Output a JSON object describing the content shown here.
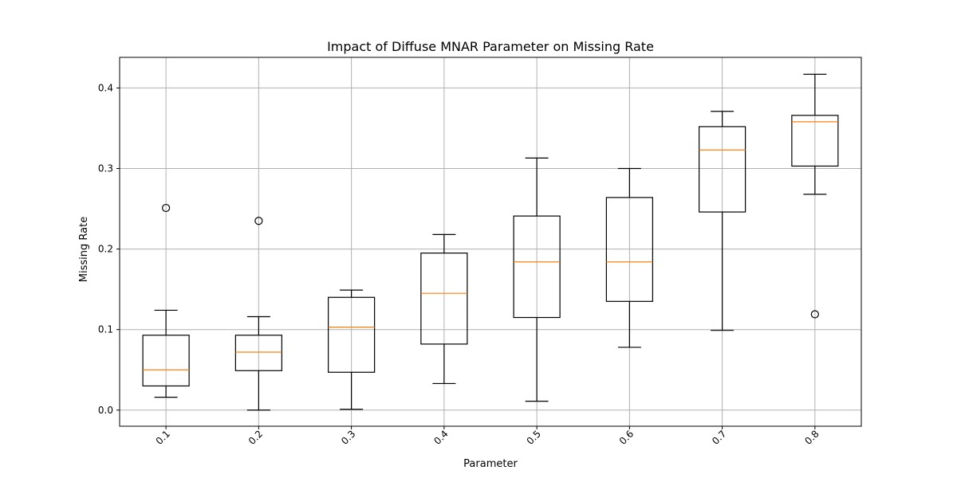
{
  "chart_data": {
    "type": "box",
    "title": "Impact of Diffuse MNAR Parameter on Missing Rate",
    "xlabel": "Parameter",
    "ylabel": "Missing Rate",
    "ylim": [
      -0.02,
      0.438
    ],
    "yticks": [
      0.0,
      0.1,
      0.2,
      0.3,
      0.4
    ],
    "ytick_labels": [
      "0.0",
      "0.1",
      "0.2",
      "0.3",
      "0.4"
    ],
    "grid": true,
    "xtick_rotation": 45,
    "categories": [
      "0.1",
      "0.2",
      "0.3",
      "0.4",
      "0.5",
      "0.6",
      "0.7",
      "0.8"
    ],
    "boxes": [
      {
        "whisker_low": 0.016,
        "q1": 0.03,
        "median": 0.05,
        "q3": 0.093,
        "whisker_high": 0.124,
        "outliers": [
          0.251
        ]
      },
      {
        "whisker_low": 0.0,
        "q1": 0.049,
        "median": 0.072,
        "q3": 0.093,
        "whisker_high": 0.116,
        "outliers": [
          0.235
        ]
      },
      {
        "whisker_low": 0.001,
        "q1": 0.047,
        "median": 0.103,
        "q3": 0.14,
        "whisker_high": 0.149,
        "outliers": []
      },
      {
        "whisker_low": 0.033,
        "q1": 0.082,
        "median": 0.145,
        "q3": 0.195,
        "whisker_high": 0.218,
        "outliers": []
      },
      {
        "whisker_low": 0.011,
        "q1": 0.115,
        "median": 0.184,
        "q3": 0.241,
        "whisker_high": 0.313,
        "outliers": []
      },
      {
        "whisker_low": 0.078,
        "q1": 0.135,
        "median": 0.184,
        "q3": 0.264,
        "whisker_high": 0.3,
        "outliers": []
      },
      {
        "whisker_low": 0.099,
        "q1": 0.246,
        "median": 0.323,
        "q3": 0.352,
        "whisker_high": 0.371,
        "outliers": []
      },
      {
        "whisker_low": 0.268,
        "q1": 0.303,
        "median": 0.358,
        "q3": 0.366,
        "whisker_high": 0.417,
        "outliers": [
          0.119
        ]
      }
    ],
    "colors": {
      "box": "#000000",
      "median": "#ff7f0e",
      "grid": "#b0b0b0"
    }
  }
}
